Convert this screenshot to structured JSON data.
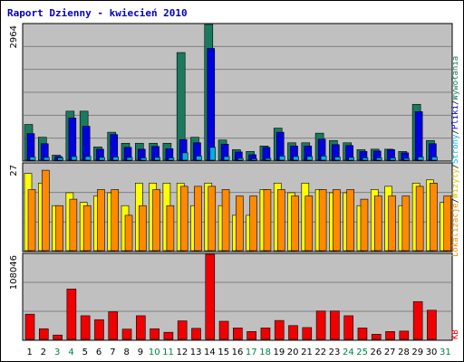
{
  "title": "Raport Dzienny -  kwiecień 2010",
  "colors": {
    "frame": "#000000",
    "panel_bg": "#c0c0c0",
    "grid": "#808080",
    "title": "#0000c0",
    "teal": "#1a7a60",
    "blue": "#0000e0",
    "cyan": "#00b0e0",
    "yellow": "#ffff00",
    "orange": "#ff8a00",
    "red": "#f00000",
    "weekday_label": "#000000",
    "weekend_label": "#008040"
  },
  "side_labels": {
    "top": [
      {
        "text": "Wywołania",
        "color": "#1a7a60"
      },
      {
        "text": "/",
        "color": "#000000"
      },
      {
        "text": "Pliki",
        "color": "#0000e0"
      },
      {
        "text": "/",
        "color": "#000000"
      },
      {
        "text": "Strony",
        "color": "#00b0e0"
      },
      {
        "text": "/",
        "color": "#000000"
      },
      {
        "text": "Wizyty",
        "color": "#e0c000"
      },
      {
        "text": "/",
        "color": "#000000"
      },
      {
        "text": "Lokalizacje",
        "color": "#ff8a00"
      }
    ],
    "bottom": {
      "text": "KB",
      "color": "#f00000"
    }
  },
  "chart_data": {
    "type": "bar",
    "categories": [
      "1",
      "2",
      "3",
      "4",
      "5",
      "6",
      "7",
      "8",
      "9",
      "10",
      "11",
      "12",
      "13",
      "14",
      "15",
      "16",
      "17",
      "18",
      "19",
      "20",
      "21",
      "22",
      "23",
      "24",
      "25",
      "26",
      "27",
      "28",
      "29",
      "30",
      "31"
    ],
    "weekend_days": [
      "3",
      "4",
      "10",
      "11",
      "17",
      "18",
      "24",
      "25",
      "31"
    ],
    "panels": [
      {
        "name": "hits-files-pages",
        "ymax_label": "2964",
        "ymax": 2964,
        "series": [
          {
            "name": "Wywołania",
            "values": [
              780,
              500,
              110,
              1070,
              1070,
              290,
              610,
              370,
              370,
              370,
              370,
              2350,
              500,
              2964,
              440,
              230,
              190,
              310,
              700,
              380,
              380,
              590,
              430,
              380,
              230,
              240,
              240,
              190,
              1220,
              430,
              0
            ]
          },
          {
            "name": "Pliki",
            "values": [
              580,
              360,
              80,
              920,
              740,
              240,
              560,
              280,
              240,
              300,
              250,
              450,
              380,
              2440,
              350,
              180,
              120,
              280,
              610,
              310,
              310,
              460,
              340,
              320,
              190,
              200,
              230,
              160,
              1060,
              360,
              0
            ]
          },
          {
            "name": "Strony",
            "values": [
              70,
              60,
              50,
              80,
              80,
              60,
              70,
              60,
              50,
              60,
              50,
              160,
              90,
              280,
              80,
              40,
              30,
              40,
              90,
              80,
              80,
              90,
              70,
              60,
              50,
              50,
              50,
              40,
              70,
              70,
              0
            ]
          }
        ]
      },
      {
        "name": "visits-sites",
        "ymax_label": "27",
        "ymax": 27,
        "series": [
          {
            "name": "Wizyty",
            "values": [
              24,
              21,
              14,
              18,
              15,
              17,
              18,
              14,
              21,
              21,
              21,
              21,
              14,
              21,
              14,
              11,
              11,
              19,
              21,
              18,
              21,
              19,
              18,
              18,
              14,
              19,
              20,
              14,
              21,
              22,
              15
            ]
          },
          {
            "name": "Lokalizacje",
            "values": [
              19,
              25,
              14,
              16,
              14,
              19,
              19,
              11,
              14,
              19,
              14,
              20,
              20,
              20,
              19,
              17,
              17,
              19,
              19,
              17,
              17,
              19,
              19,
              19,
              16,
              17,
              17,
              17,
              20,
              21,
              17
            ]
          }
        ]
      },
      {
        "name": "kb",
        "ymax_label": "108046",
        "ymax": 108046,
        "series": [
          {
            "name": "KB",
            "values": [
              32000,
              13500,
              5500,
              64000,
              30000,
              25000,
              35000,
              13000,
              30000,
              13500,
              9000,
              23500,
              14000,
              108046,
              23000,
              14500,
              10000,
              14500,
              24000,
              17500,
              15000,
              36000,
              36000,
              30000,
              14500,
              6500,
              10000,
              10500,
              48000,
              37000,
              0
            ]
          }
        ]
      }
    ]
  }
}
